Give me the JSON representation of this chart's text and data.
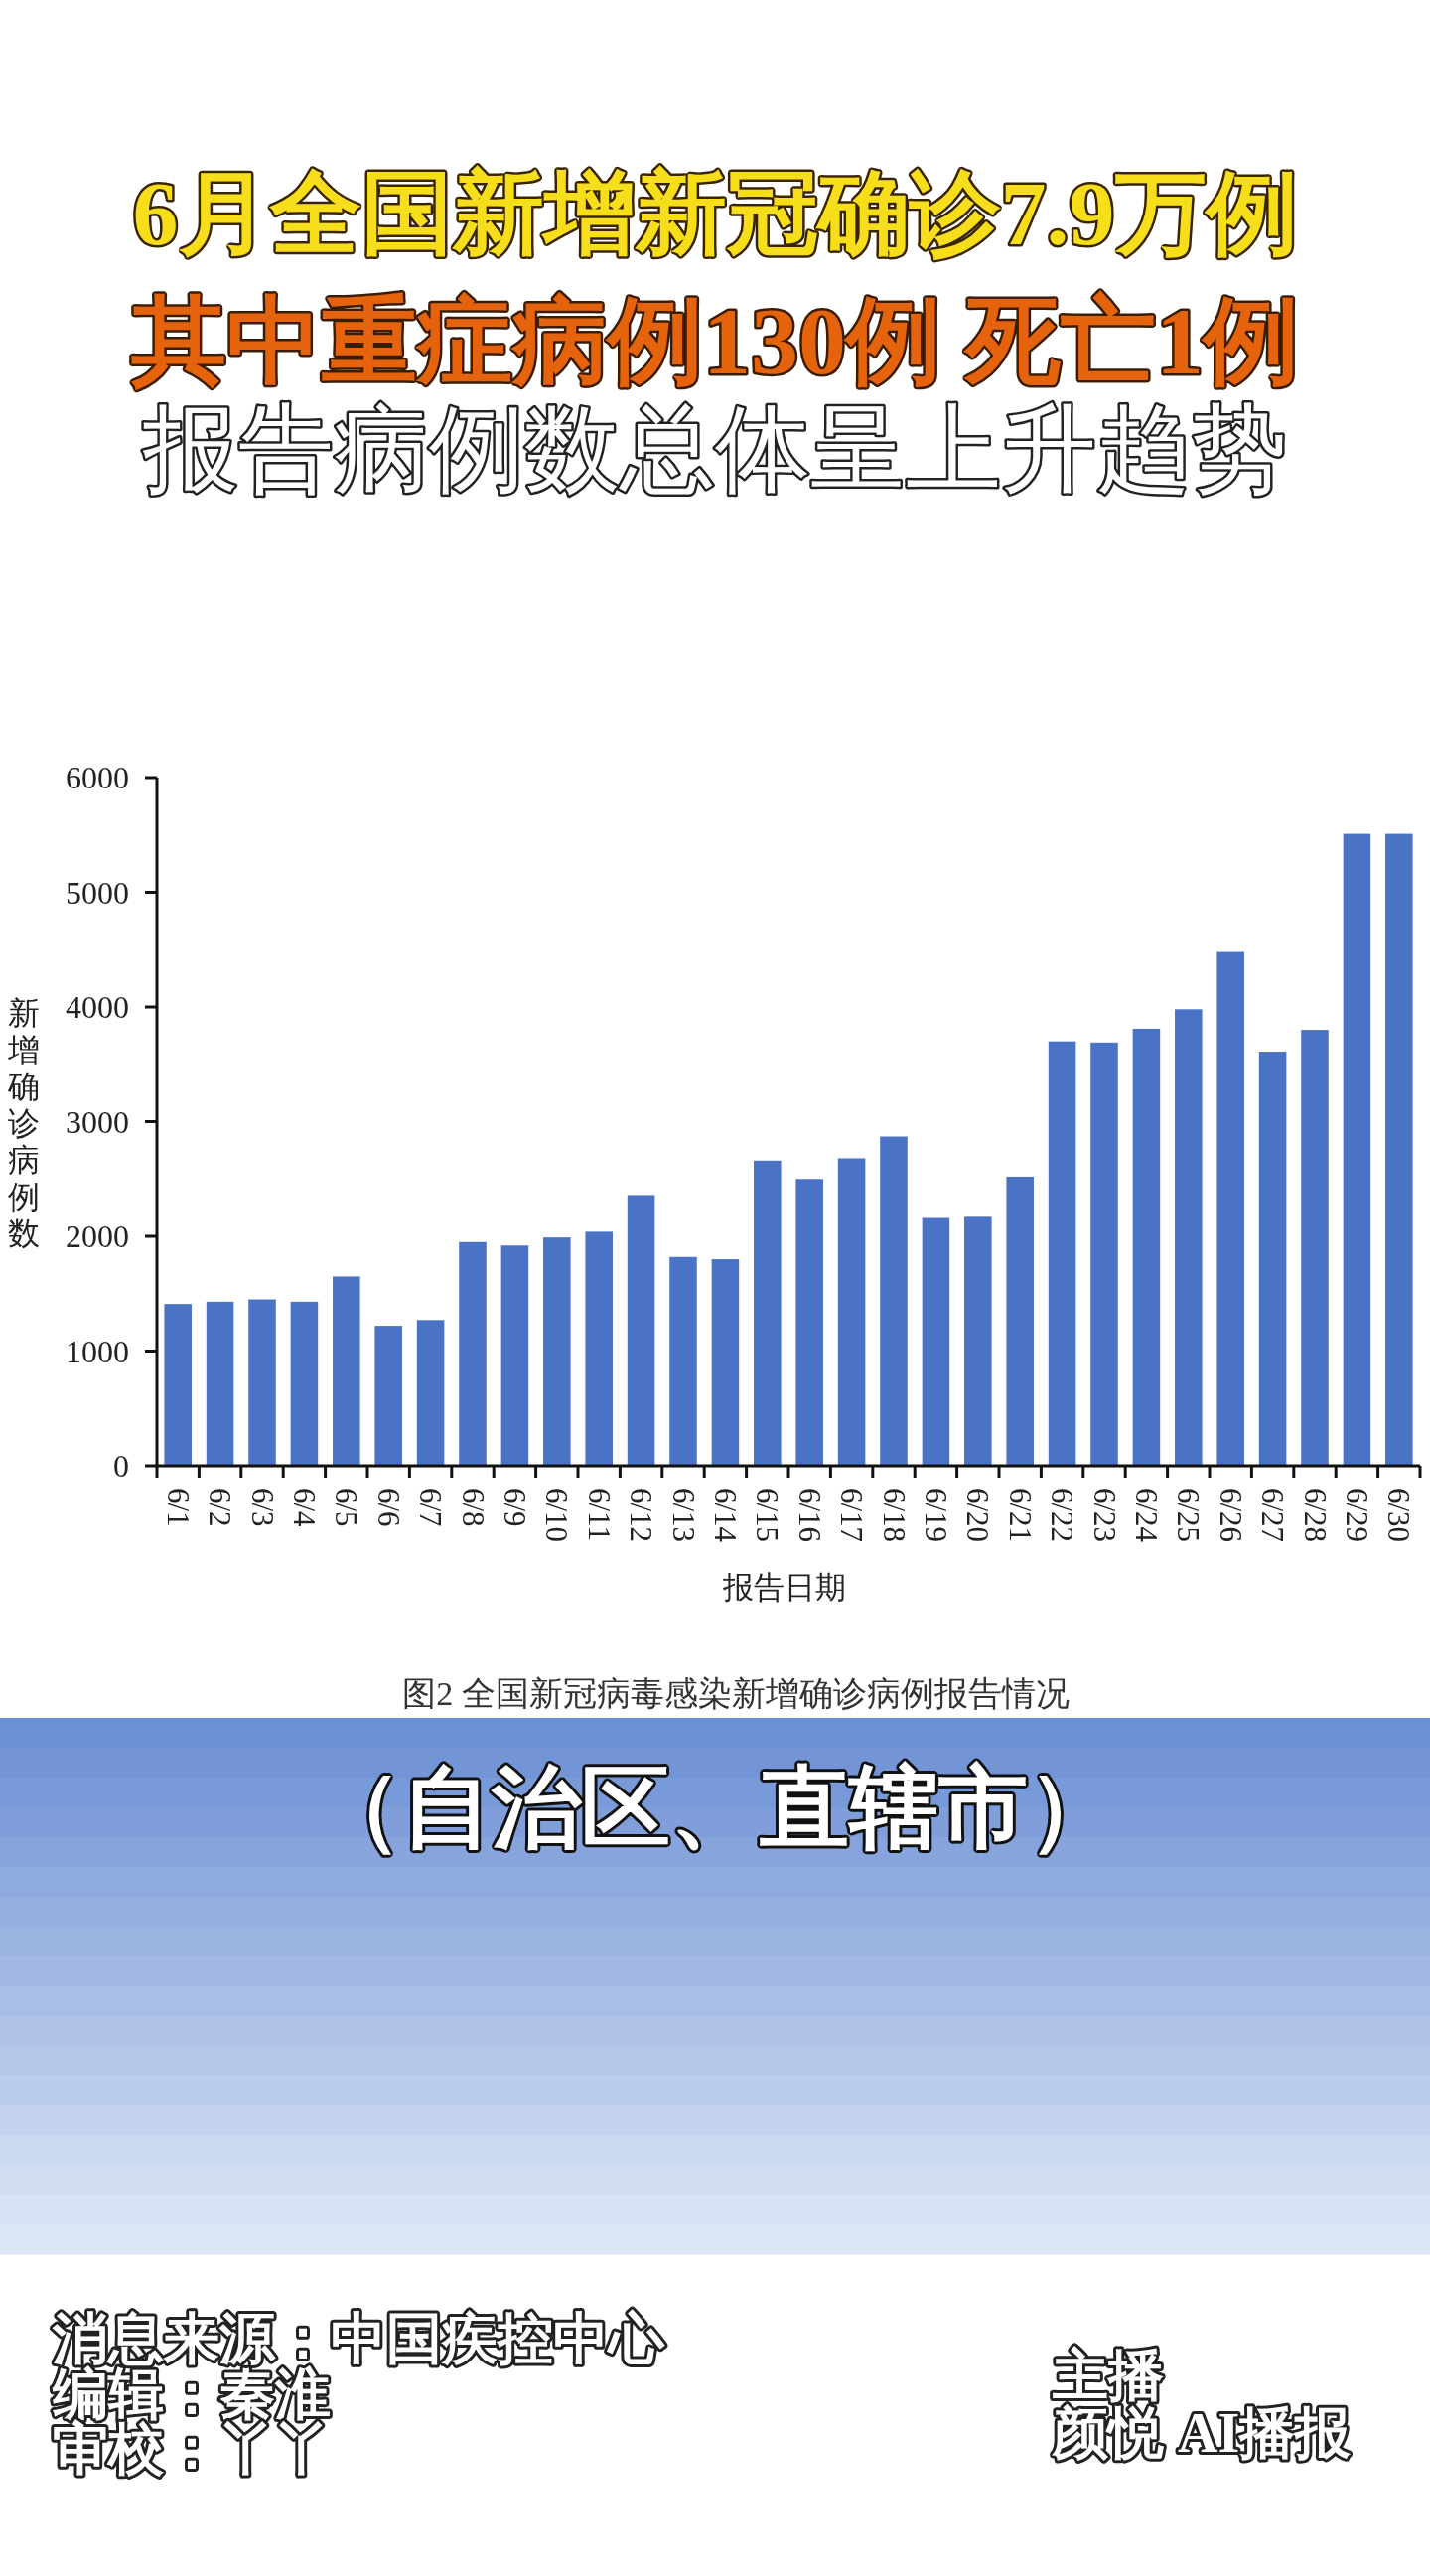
{
  "chart_data": {
    "type": "bar",
    "title": "6月全国新增新冠确诊7.9万例",
    "subtitle": "其中重症病例130例 死亡1例",
    "xlabel": "报告日期",
    "ylabel": "新增确诊病例数",
    "annotations": [
      "报告病例数总体呈上升趋势",
      "图2 全国新冠病毒感染新增确诊病例报告情况",
      "（自治区、直辖市）",
      "消息来源：中国疾控中心",
      "编辑：秦淮",
      "审校：丫丫",
      "主播",
      "颜悦 AI播报"
    ],
    "categories": [
      "6/1",
      "6/2",
      "6/3",
      "6/4",
      "6/5",
      "6/6",
      "6/7",
      "6/8",
      "6/9",
      "6/10",
      "6/11",
      "6/12",
      "6/13",
      "6/14",
      "6/15",
      "6/16",
      "6/17",
      "6/18",
      "6/19",
      "6/20",
      "6/21",
      "6/22",
      "6/23",
      "6/24",
      "6/25",
      "6/26",
      "6/27",
      "6/28",
      "6/29",
      "6/30"
    ],
    "values": [
      1410,
      1430,
      1450,
      1430,
      1650,
      1220,
      1270,
      1950,
      1920,
      1990,
      2040,
      2360,
      1820,
      1800,
      2660,
      2500,
      2680,
      2870,
      2160,
      2170,
      2520,
      3700,
      3690,
      3810,
      3980,
      4480,
      3610,
      3800,
      5510,
      5510
    ],
    "color": "#4a73c6",
    "ylim": [
      0,
      6000
    ],
    "yticks": [
      0,
      1000,
      2000,
      3000,
      4000,
      5000,
      6000
    ]
  }
}
